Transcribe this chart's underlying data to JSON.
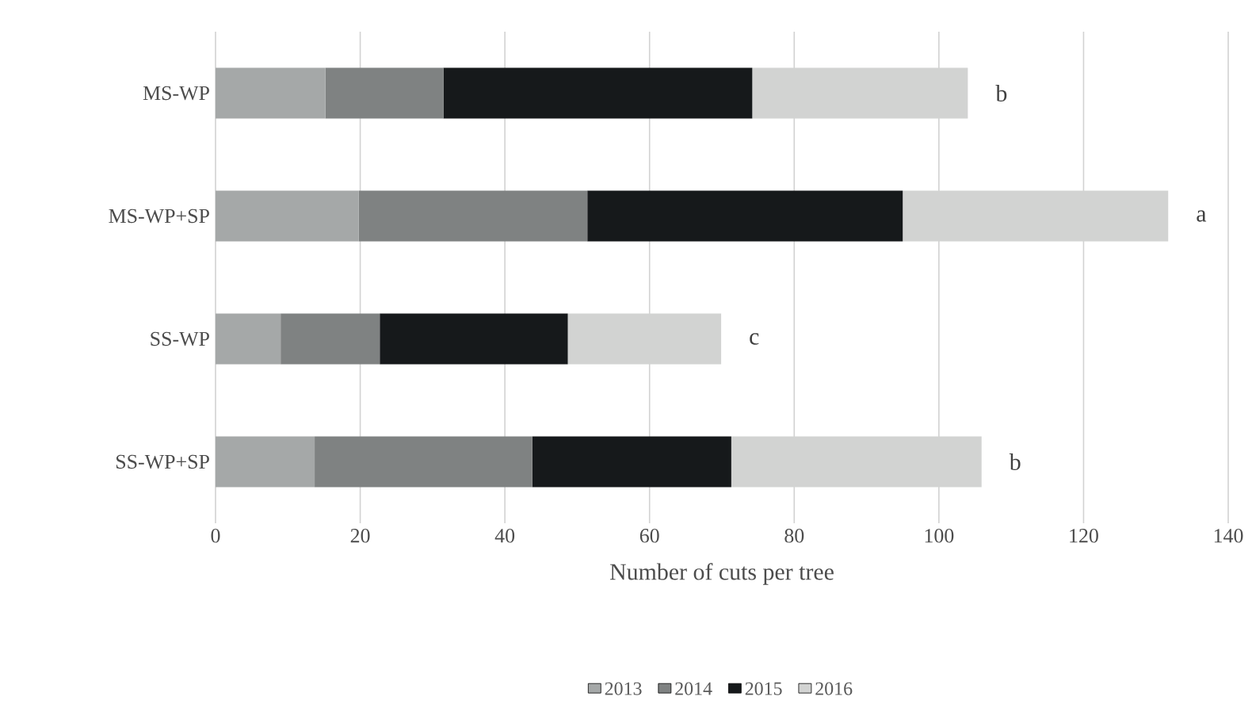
{
  "chart_data": {
    "type": "bar",
    "orientation": "horizontal",
    "stacked": true,
    "xlabel": "Number of cuts per tree",
    "categories": [
      "MS-WP",
      "MS-WP+SP",
      "SS-WP",
      "SS-WP+SP"
    ],
    "series": [
      {
        "name": "2013",
        "color": "#a5a8a8",
        "values": [
          15.2,
          19.8,
          9.0,
          13.7
        ]
      },
      {
        "name": "2014",
        "color": "#7f8282",
        "values": [
          16.3,
          31.6,
          13.7,
          30.1
        ]
      },
      {
        "name": "2015",
        "color": "#16191b",
        "values": [
          42.7,
          43.6,
          26.0,
          27.5
        ]
      },
      {
        "name": "2016",
        "color": "#d2d3d2",
        "values": [
          29.8,
          36.7,
          21.2,
          34.6
        ]
      }
    ],
    "xlim": [
      0,
      140
    ],
    "xticks": [
      0,
      20,
      40,
      60,
      80,
      100,
      120,
      140
    ],
    "grid": "x",
    "legend": "bottom",
    "annotations": [
      {
        "text": "b",
        "x": 104,
        "y": "MS-WP"
      },
      {
        "text": "a",
        "x": 131.7,
        "y": "MS-WP+SP"
      },
      {
        "text": "c",
        "x": 69.9,
        "y": "SS-WP"
      },
      {
        "text": "b",
        "x": 105.9,
        "y": "SS-WP+SP"
      }
    ]
  }
}
